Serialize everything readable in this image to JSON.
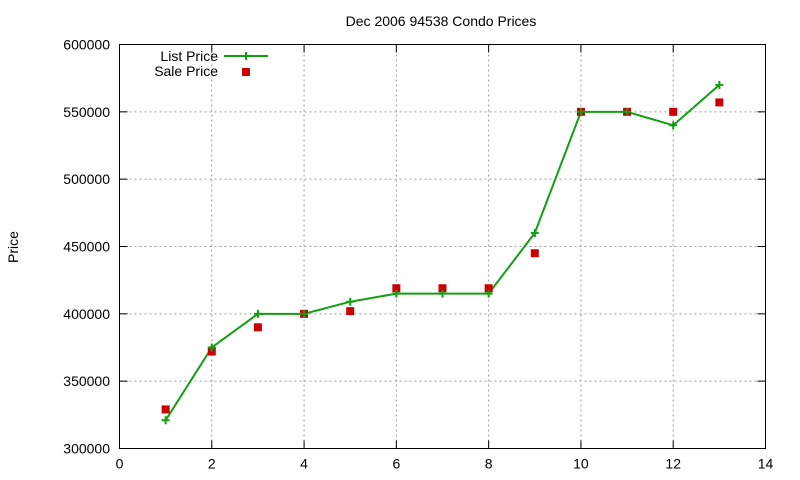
{
  "chart_data": {
    "type": "scatter",
    "title": "Dec 2006 94538 Condo Prices",
    "xlabel": "",
    "ylabel": "Price",
    "xlim": [
      0,
      14
    ],
    "ylim": [
      300000,
      600000
    ],
    "xticks": [
      0,
      2,
      4,
      6,
      8,
      10,
      12,
      14
    ],
    "yticks": [
      300000,
      350000,
      400000,
      450000,
      500000,
      550000,
      600000
    ],
    "grid": true,
    "legend_position": "top-left",
    "series": [
      {
        "name": "List Price",
        "style": "line+cross",
        "color": "#12a012",
        "x": [
          1,
          2,
          3,
          4,
          5,
          6,
          7,
          8,
          9,
          10,
          11,
          12,
          13
        ],
        "y": [
          321000,
          375000,
          400000,
          400000,
          409000,
          415000,
          415000,
          415000,
          460000,
          550000,
          550000,
          540000,
          570000
        ]
      },
      {
        "name": "Sale Price",
        "style": "square",
        "color": "#cc0000",
        "x": [
          1,
          2,
          3,
          4,
          5,
          6,
          7,
          8,
          9,
          10,
          11,
          12,
          13
        ],
        "y": [
          329000,
          372000,
          390000,
          400000,
          402000,
          419000,
          419000,
          419000,
          445000,
          550000,
          550000,
          550000,
          557000
        ]
      }
    ]
  }
}
